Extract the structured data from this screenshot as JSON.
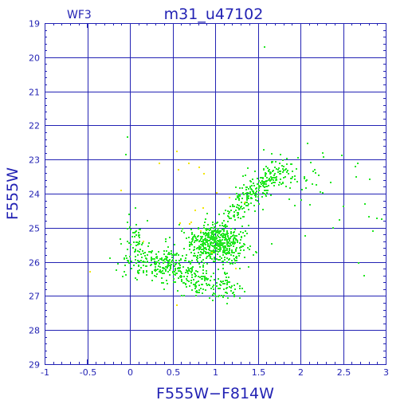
{
  "chart_data": {
    "type": "scatter",
    "chip_label": "WF3",
    "title": "m31_u47102",
    "xlabel": "F555W−F814W",
    "ylabel": "F555W",
    "xlim": [
      -1,
      3
    ],
    "ylim": [
      29,
      19
    ],
    "y_inverted": true,
    "grid": true,
    "x_ticks": [
      "-1",
      "-0.5",
      "0",
      "0.5",
      "1",
      "1.5",
      "2",
      "2.5",
      "3"
    ],
    "y_ticks": [
      "19",
      "20",
      "21",
      "22",
      "23",
      "24",
      "25",
      "26",
      "27",
      "28",
      "29"
    ],
    "colors": {
      "frame": "#2323b4",
      "main_points": "#22e622",
      "secondary_points": "#f2e600"
    },
    "point_groups": [
      {
        "color": "#22e622",
        "kind": "main-clump",
        "center": [
          1.02,
          25.45
        ],
        "spread": [
          0.16,
          0.3
        ],
        "count": 520
      },
      {
        "color": "#22e622",
        "kind": "red-clump-tail",
        "center": [
          0.78,
          26.3
        ],
        "spread": [
          0.32,
          0.38
        ],
        "count": 260
      },
      {
        "color": "#22e622",
        "kind": "faint-band",
        "center": [
          0.35,
          26.05
        ],
        "spread": [
          0.22,
          0.28
        ],
        "count": 140
      },
      {
        "color": "#22e622",
        "kind": "blue-edge",
        "center": [
          0.05,
          25.4
        ],
        "spread": [
          0.09,
          0.45
        ],
        "count": 55
      },
      {
        "color": "#22e622",
        "kind": "red-giant-branch",
        "center": [
          1.4,
          24.1
        ],
        "spread": [
          0.16,
          0.3
        ],
        "count": 190
      },
      {
        "color": "#22e622",
        "kind": "upper-branch",
        "center": [
          1.8,
          23.5
        ],
        "spread": [
          0.2,
          0.25
        ],
        "count": 90
      },
      {
        "color": "#22e622",
        "kind": "scattered-red",
        "center": [
          2.25,
          24.3
        ],
        "spread": [
          0.45,
          0.8
        ],
        "count": 30
      },
      {
        "color": "#f2e600",
        "kind": "yellow-sparse",
        "center": [
          0.75,
          24.6
        ],
        "spread": [
          0.4,
          1.0
        ],
        "count": 18
      }
    ],
    "outliers": [
      {
        "x": 1.58,
        "y": 19.7,
        "color": "#22e622"
      },
      {
        "x": -0.05,
        "y": 22.85,
        "color": "#22e622"
      },
      {
        "x": -0.03,
        "y": 22.35,
        "color": "#22e622"
      },
      {
        "x": 2.85,
        "y": 25.1,
        "color": "#22e622"
      },
      {
        "x": 2.95,
        "y": 24.75,
        "color": "#22e622"
      },
      {
        "x": 2.75,
        "y": 26.4,
        "color": "#22e622"
      },
      {
        "x": 2.65,
        "y": 23.5,
        "color": "#22e622"
      },
      {
        "x": -0.47,
        "y": 26.3,
        "color": "#f2e600"
      },
      {
        "x": 0.55,
        "y": 22.75,
        "color": "#f2e600"
      },
      {
        "x": 0.57,
        "y": 23.3,
        "color": "#f2e600"
      }
    ]
  }
}
